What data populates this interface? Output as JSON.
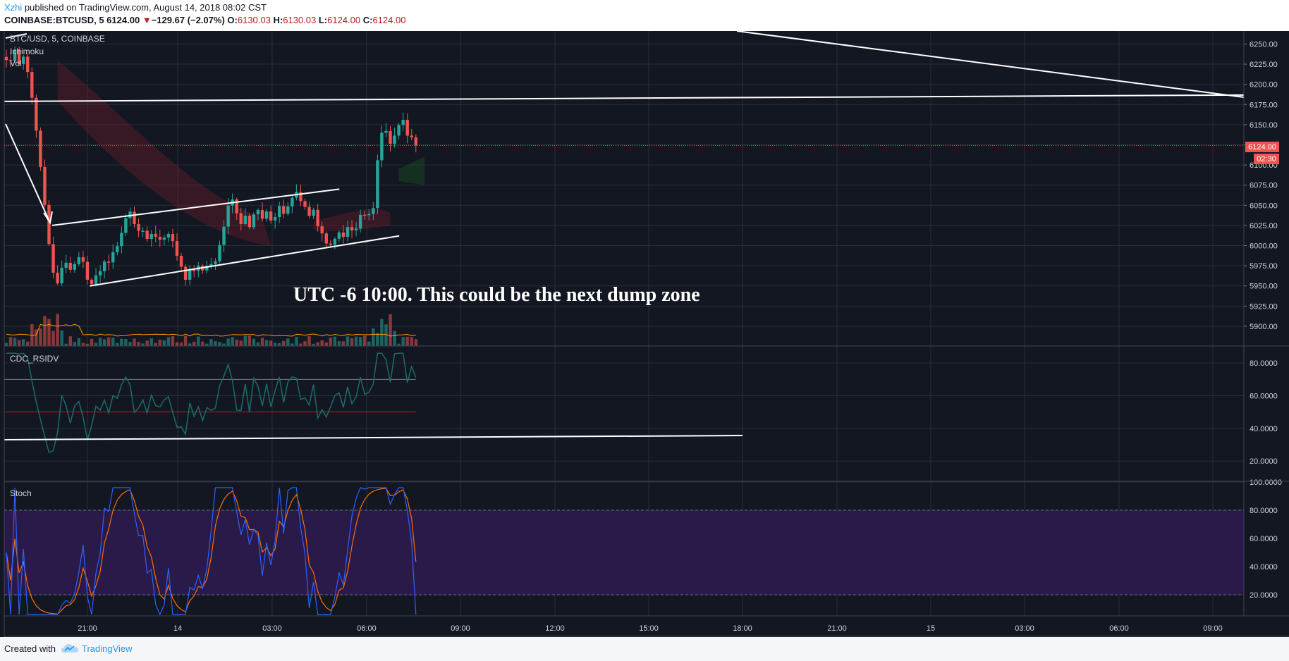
{
  "header": {
    "author": "Xzhi",
    "published": " published on TradingView.com, August 14, 2018 08:02 CST",
    "symbol": "COINBASE:BTCUSD, 5",
    "price": "6124.00",
    "change_arrow": "▼",
    "change": "−129.67 (−2.07%)",
    "o_label": "O:",
    "o_value": "6130.03",
    "h_label": "H:",
    "h_value": "6130.03",
    "l_label": "L:",
    "l_value": "6124.00",
    "c_label": "C:",
    "c_value": "6124.00"
  },
  "legend": {
    "main": "BTC/USD, 5, COINBASE",
    "ichimoku": "Ichimoku",
    "vol": "Vol",
    "rsi": "CDC_RSIDV",
    "stoch": "Stoch"
  },
  "price_badge": {
    "value": "6124.00",
    "countdown": "02:30"
  },
  "annotation": "UTC -6 10:00. This could be the next dump zone",
  "footer": {
    "created_with": "Created with",
    "brand": "TradingView"
  },
  "colors": {
    "background": "#131722",
    "grid": "#2a2e39",
    "axis_text": "#d1d4dc",
    "up": "#26a69a",
    "down": "#ef5350",
    "stoch_zone": "#2a1a4a",
    "stoch_k": "#2962ff",
    "stoch_d": "#ff6d00",
    "rsi_line": "#1b6b6b",
    "brand": "#2196f3"
  },
  "chart_data": [
    {
      "type": "candlestick",
      "title": "BTC/USD, 5, COINBASE",
      "ylim": [
        5880,
        6260
      ],
      "y_ticks": [
        "6250.00",
        "6225.00",
        "6200.00",
        "6175.00",
        "6150.00",
        "6125.00",
        "6100.00",
        "6075.00",
        "6050.00",
        "6025.00",
        "6000.00",
        "5975.00",
        "5950.00",
        "5925.00",
        "5900.00"
      ],
      "x_ticks": [
        "21:00",
        "14",
        "03:00",
        "06:00",
        "09:00",
        "12:00",
        "15:00",
        "18:00",
        "21:00",
        "15",
        "03:00",
        "06:00",
        "09:00"
      ],
      "last_price": 6124.0,
      "price_path": [
        [
          0,
          6235
        ],
        [
          1,
          6225
        ],
        [
          2,
          6245
        ],
        [
          3,
          6228
        ],
        [
          4,
          6232
        ],
        [
          5,
          6215
        ],
        [
          6,
          6185
        ],
        [
          7,
          6140
        ],
        [
          8,
          6095
        ],
        [
          9,
          6050
        ],
        [
          10,
          6000
        ],
        [
          11,
          5965
        ],
        [
          12,
          5950
        ],
        [
          13,
          5975
        ],
        [
          14,
          5980
        ],
        [
          15,
          5968
        ],
        [
          16,
          5975
        ],
        [
          17,
          5990
        ],
        [
          18,
          5978
        ],
        [
          19,
          5958
        ],
        [
          20,
          5948
        ],
        [
          21,
          5960
        ],
        [
          22,
          5972
        ],
        [
          23,
          5980
        ],
        [
          24,
          5975
        ],
        [
          25,
          5990
        ],
        [
          26,
          5998
        ],
        [
          27,
          6015
        ],
        [
          28,
          6030
        ],
        [
          29,
          6038
        ],
        [
          30,
          6028
        ],
        [
          31,
          6020
        ],
        [
          32,
          6015
        ],
        [
          33,
          6010
        ],
        [
          34,
          6018
        ],
        [
          35,
          6013
        ],
        [
          36,
          6008
        ],
        [
          37,
          6012
        ],
        [
          38,
          6010
        ],
        [
          39,
          6005
        ],
        [
          40,
          5985
        ],
        [
          41,
          5970
        ],
        [
          42,
          5962
        ],
        [
          43,
          5972
        ],
        [
          44,
          5968
        ],
        [
          45,
          5975
        ],
        [
          46,
          5970
        ],
        [
          47,
          5978
        ],
        [
          48,
          5973
        ],
        [
          49,
          5985
        ],
        [
          50,
          6002
        ],
        [
          51,
          6025
        ],
        [
          52,
          6048
        ],
        [
          53,
          6053
        ],
        [
          54,
          6040
        ],
        [
          55,
          6030
        ],
        [
          56,
          6038
        ],
        [
          57,
          6025
        ],
        [
          58,
          6040
        ],
        [
          59,
          6045
        ],
        [
          60,
          6035
        ],
        [
          61,
          6042
        ],
        [
          62,
          6030
        ],
        [
          63,
          6038
        ],
        [
          64,
          6045
        ],
        [
          65,
          6040
        ],
        [
          66,
          6045
        ],
        [
          67,
          6058
        ],
        [
          68,
          6065
        ],
        [
          69,
          6055
        ],
        [
          70,
          6048
        ],
        [
          71,
          6035
        ],
        [
          72,
          6040
        ],
        [
          73,
          6025
        ],
        [
          74,
          6013
        ],
        [
          75,
          6005
        ],
        [
          76,
          6000
        ],
        [
          77,
          6010
        ],
        [
          78,
          6018
        ],
        [
          79,
          6012
        ],
        [
          80,
          6020
        ],
        [
          81,
          6015
        ],
        [
          82,
          6025
        ],
        [
          83,
          6035
        ],
        [
          84,
          6042
        ],
        [
          85,
          6040
        ],
        [
          86,
          6050
        ],
        [
          87,
          6110
        ],
        [
          88,
          6135
        ],
        [
          89,
          6145
        ],
        [
          90,
          6125
        ],
        [
          91,
          6140
        ],
        [
          92,
          6150
        ],
        [
          93,
          6155
        ],
        [
          94,
          6140
        ],
        [
          95,
          6130
        ],
        [
          96,
          6125
        ]
      ],
      "resistance_level": 6185,
      "channel_upper": [
        [
          0,
          6025
        ],
        [
          45,
          6070
        ]
      ],
      "channel_lower": [
        [
          10,
          5950
        ],
        [
          83,
          6012
        ]
      ],
      "downtrend_line": [
        [
          6200,
          6260
        ],
        [
          6180,
          6184
        ]
      ]
    },
    {
      "type": "line",
      "title": "CDC_RSIDV",
      "ylim": [
        8,
        90
      ],
      "y_ticks": [
        "80.0000",
        "60.0000",
        "40.0000",
        "20.0000"
      ],
      "levels": [
        70,
        50
      ]
    },
    {
      "type": "line",
      "title": "Stoch",
      "ylim": [
        5,
        100
      ],
      "y_ticks": [
        "100.0000",
        "80.0000",
        "60.0000",
        "40.0000",
        "20.0000"
      ],
      "band": [
        20,
        80
      ]
    }
  ]
}
